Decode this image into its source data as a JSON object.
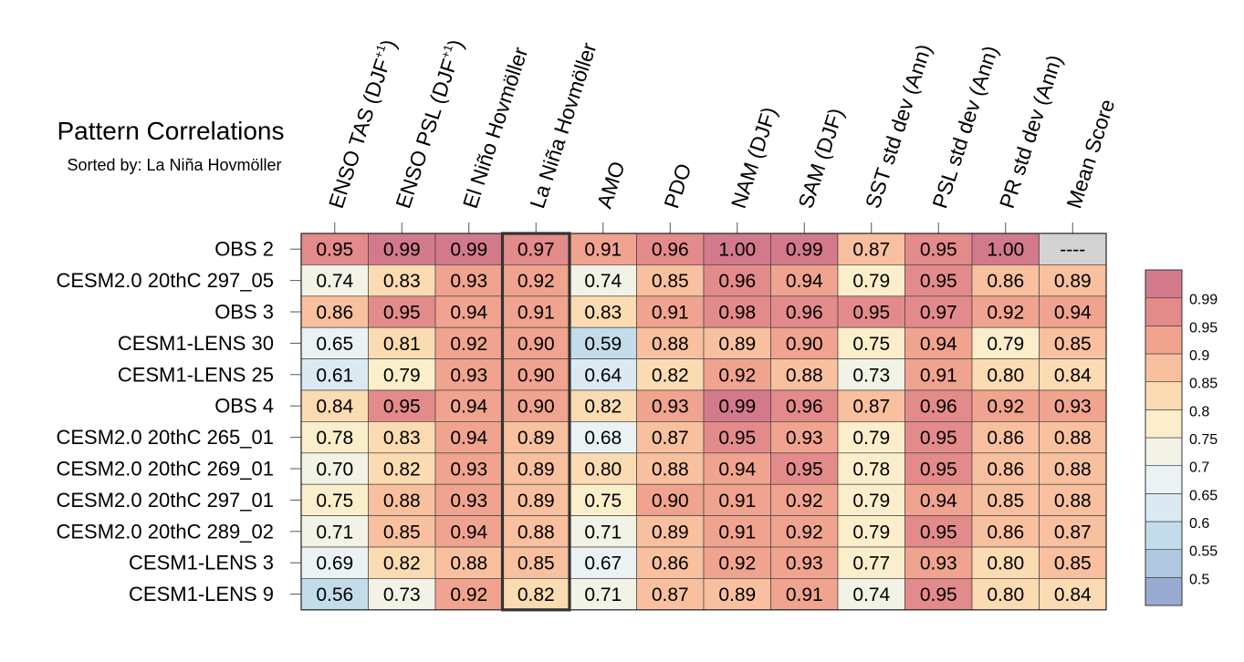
{
  "chart_data": {
    "type": "heatmap",
    "title": "Pattern Correlations",
    "subtitle": "Sorted by: La Niña Hovmöller",
    "columns": [
      {
        "label": "ENSO TAS (DJF",
        "sup": "+1",
        "tail": ")"
      },
      {
        "label": "ENSO PSL (DJF",
        "sup": "+1",
        "tail": ")"
      },
      {
        "label": "El Niño Hovmöller",
        "sup": "",
        "tail": ""
      },
      {
        "label": "La Niña Hovmöller",
        "sup": "",
        "tail": ""
      },
      {
        "label": "AMO",
        "sup": "",
        "tail": ""
      },
      {
        "label": "PDO",
        "sup": "",
        "tail": ""
      },
      {
        "label": "NAM (DJF)",
        "sup": "",
        "tail": ""
      },
      {
        "label": "SAM (DJF)",
        "sup": "",
        "tail": ""
      },
      {
        "label": "SST std dev (Ann)",
        "sup": "",
        "tail": ""
      },
      {
        "label": "PSL std dev (Ann)",
        "sup": "",
        "tail": ""
      },
      {
        "label": "PR std dev (Ann)",
        "sup": "",
        "tail": ""
      },
      {
        "label": "Mean Score",
        "sup": "",
        "tail": ""
      }
    ],
    "rows": [
      "OBS 2",
      "CESM2.0 20thC 297_05",
      "OBS 3",
      "CESM1-LENS 30",
      "CESM1-LENS 25",
      "OBS 4",
      "CESM2.0 20thC 265_01",
      "CESM2.0 20thC 269_01",
      "CESM2.0 20thC 297_01",
      "CESM2.0 20thC 289_02",
      "CESM1-LENS 3",
      "CESM1-LENS 9"
    ],
    "values": [
      [
        0.95,
        0.99,
        0.99,
        0.97,
        0.91,
        0.96,
        1.0,
        0.99,
        0.87,
        0.95,
        1.0,
        null
      ],
      [
        0.74,
        0.83,
        0.93,
        0.92,
        0.74,
        0.85,
        0.96,
        0.94,
        0.79,
        0.95,
        0.86,
        0.89
      ],
      [
        0.86,
        0.95,
        0.94,
        0.91,
        0.83,
        0.91,
        0.98,
        0.96,
        0.95,
        0.97,
        0.92,
        0.94
      ],
      [
        0.65,
        0.81,
        0.92,
        0.9,
        0.59,
        0.88,
        0.89,
        0.9,
        0.75,
        0.94,
        0.79,
        0.85
      ],
      [
        0.61,
        0.79,
        0.93,
        0.9,
        0.64,
        0.82,
        0.92,
        0.88,
        0.73,
        0.91,
        0.8,
        0.84
      ],
      [
        0.84,
        0.95,
        0.94,
        0.9,
        0.82,
        0.93,
        0.99,
        0.96,
        0.87,
        0.96,
        0.92,
        0.93
      ],
      [
        0.78,
        0.83,
        0.94,
        0.89,
        0.68,
        0.87,
        0.95,
        0.93,
        0.79,
        0.95,
        0.86,
        0.88
      ],
      [
        0.7,
        0.82,
        0.93,
        0.89,
        0.8,
        0.88,
        0.94,
        0.95,
        0.78,
        0.95,
        0.86,
        0.88
      ],
      [
        0.75,
        0.88,
        0.93,
        0.89,
        0.75,
        0.9,
        0.91,
        0.92,
        0.79,
        0.94,
        0.85,
        0.88
      ],
      [
        0.71,
        0.85,
        0.94,
        0.88,
        0.71,
        0.89,
        0.91,
        0.92,
        0.79,
        0.95,
        0.86,
        0.87
      ],
      [
        0.69,
        0.82,
        0.88,
        0.85,
        0.67,
        0.86,
        0.92,
        0.93,
        0.77,
        0.93,
        0.8,
        0.85
      ],
      [
        0.56,
        0.73,
        0.92,
        0.82,
        0.71,
        0.87,
        0.89,
        0.91,
        0.74,
        0.95,
        0.8,
        0.84
      ]
    ],
    "missing_label": "----",
    "missing_color": "#d3d3d3",
    "highlight_column": 3,
    "colorbar": {
      "levels": [
        0.5,
        0.55,
        0.6,
        0.65,
        0.7,
        0.75,
        0.8,
        0.85,
        0.9,
        0.95,
        0.99
      ],
      "labels": [
        "0.5",
        "0.55",
        "0.6",
        "0.65",
        "0.7",
        "0.75",
        "0.8",
        "0.85",
        "0.9",
        "0.95",
        "0.99"
      ],
      "colors": [
        "#98acd2",
        "#afc8e0",
        "#c3dcea",
        "#dbe9f2",
        "#eaf2f4",
        "#f3f2e6",
        "#fbefcb",
        "#fbdbb1",
        "#f8c09f",
        "#f0a38e",
        "#e38a8a",
        "#d3798c"
      ]
    }
  }
}
